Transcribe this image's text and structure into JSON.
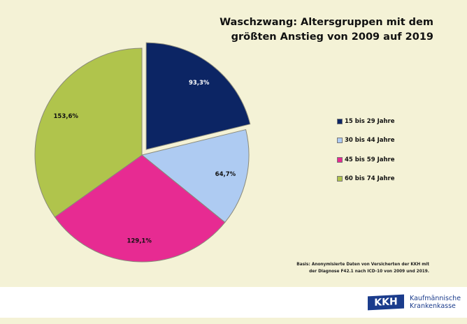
{
  "chart_data": {
    "type": "pie",
    "title": [
      "Waschzwang: Altersgruppen mit dem",
      "größten Anstieg von 2009 auf 2019"
    ],
    "slices": [
      {
        "label": "15 bis 29 Jahre",
        "value": 93.3,
        "data_label": "93,3%",
        "color": "#0c2564",
        "exploded": true,
        "label_color": "#ffffff"
      },
      {
        "label": "30 bis 44 Jahre",
        "value": 64.7,
        "data_label": "64,7%",
        "color": "#aecbf2",
        "exploded": false,
        "label_color": "#111111"
      },
      {
        "label": "45 bis 59 Jahre",
        "value": 129.1,
        "data_label": "129,1%",
        "color": "#e72b92",
        "exploded": false,
        "label_color": "#111111"
      },
      {
        "label": "60 bis 74 Jahre",
        "value": 153.6,
        "data_label": "153,6%",
        "color": "#b0c44c",
        "exploded": false,
        "label_color": "#111111"
      }
    ],
    "legend_position": "right"
  },
  "note": [
    "Basis: Anonymisierte Daten von Versicherten der KKH mit",
    "der Diagnose F42.1 nach ICD-10 von 2009 und 2019."
  ],
  "logo": {
    "mark": "KKH",
    "line1": "Kaufmännische",
    "line2": "Krankenkasse",
    "color": "#1b3c8c"
  }
}
